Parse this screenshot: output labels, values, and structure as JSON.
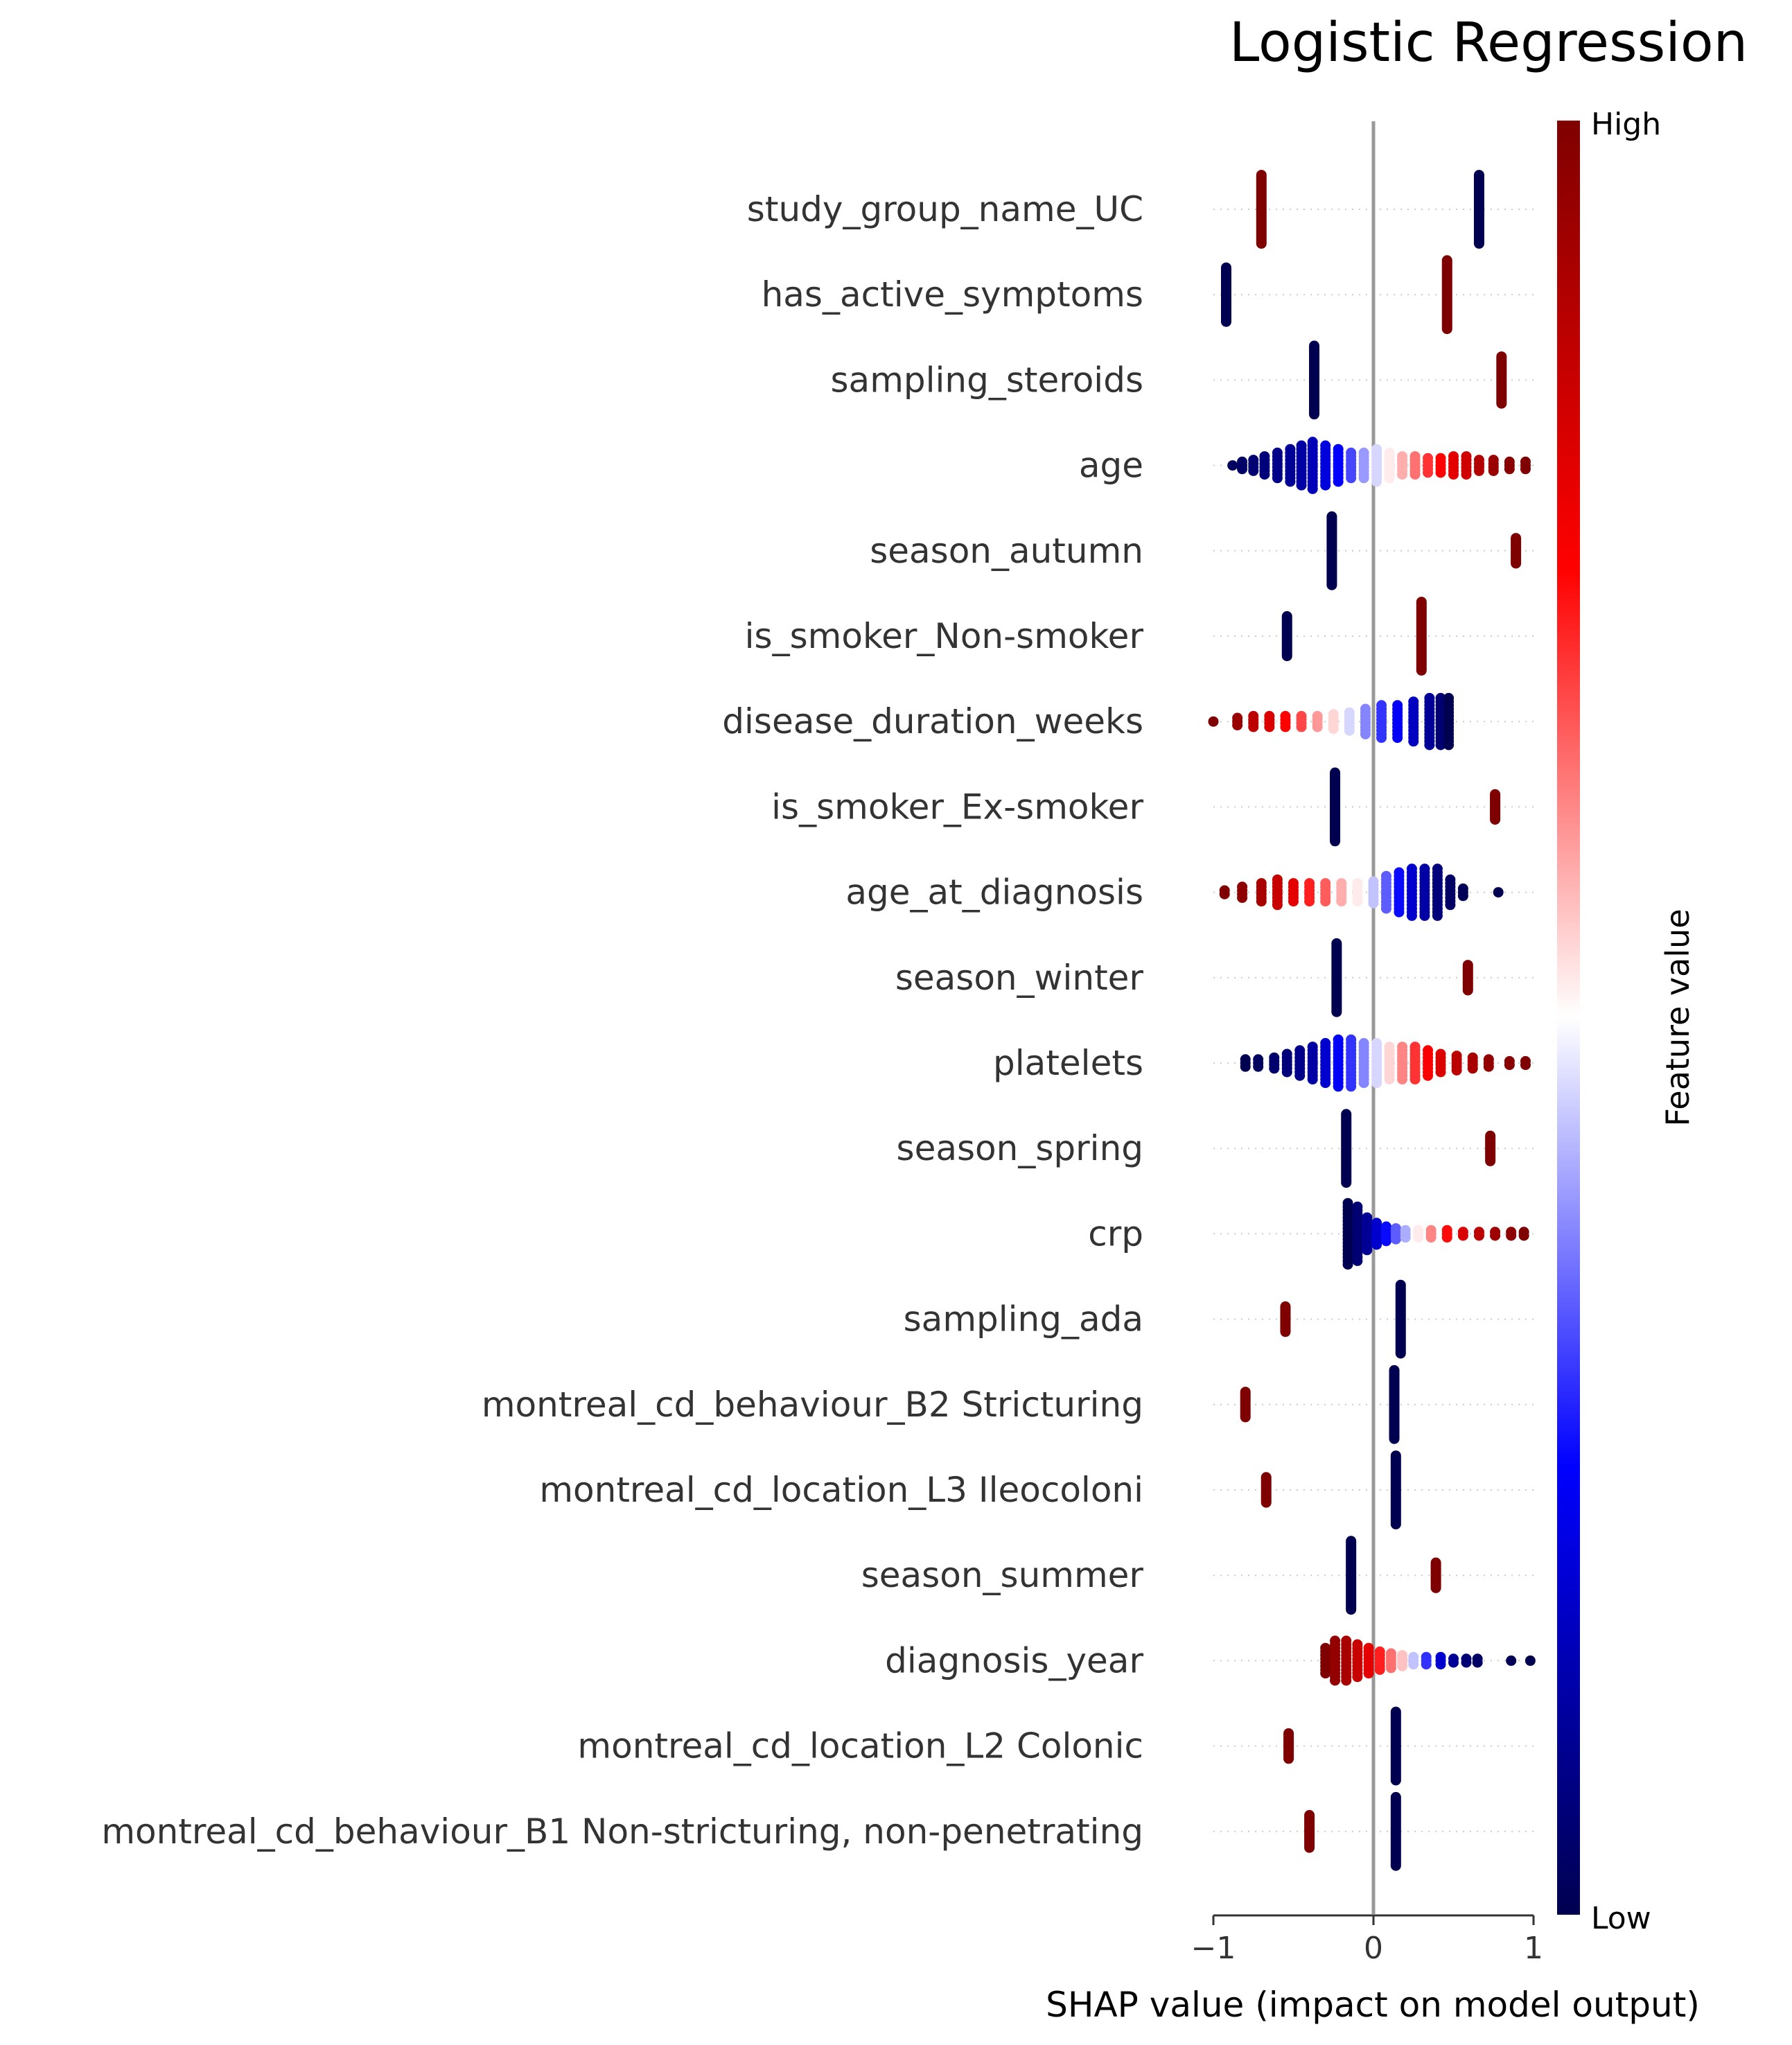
{
  "chart_data": {
    "type": "scatter",
    "subtype": "shap-beeswarm-summary",
    "title": "Logistic Regression",
    "xlabel": "SHAP value (impact on model output)",
    "xlim": [
      -1,
      1
    ],
    "xticks": [
      -1,
      0,
      1
    ],
    "xtick_labels": [
      "−1",
      "0",
      "1"
    ],
    "zero_line": true,
    "colorbar": {
      "title": "Feature value",
      "high_label": "High",
      "low_label": "Low",
      "colors": [
        "#000050",
        "#0000ff",
        "#ffffff",
        "#ff0000",
        "#7f0000"
      ]
    },
    "features": [
      {
        "name": "study_group_name_UC",
        "type": "binary",
        "groups": [
          {
            "shap": -0.7,
            "value": 1.0,
            "count": 20
          },
          {
            "shap": 0.66,
            "value": 0.0,
            "count": 20
          }
        ]
      },
      {
        "name": "has_active_symptoms",
        "type": "binary",
        "groups": [
          {
            "shap": -0.92,
            "value": 0.0,
            "count": 16
          },
          {
            "shap": 0.46,
            "value": 1.0,
            "count": 20
          }
        ]
      },
      {
        "name": "sampling_steroids",
        "type": "binary",
        "groups": [
          {
            "shap": -0.37,
            "value": 0.0,
            "count": 20
          },
          {
            "shap": 0.8,
            "value": 1.0,
            "count": 14
          }
        ]
      },
      {
        "name": "age",
        "type": "continuous",
        "clusters": [
          {
            "shap": -0.88,
            "value": 0.02,
            "n": 1
          },
          {
            "shap": -0.82,
            "value": 0.03,
            "n": 3
          },
          {
            "shap": -0.75,
            "value": 0.05,
            "n": 4
          },
          {
            "shap": -0.68,
            "value": 0.06,
            "n": 6
          },
          {
            "shap": -0.6,
            "value": 0.08,
            "n": 8
          },
          {
            "shap": -0.52,
            "value": 0.1,
            "n": 10
          },
          {
            "shap": -0.45,
            "value": 0.12,
            "n": 12
          },
          {
            "shap": -0.38,
            "value": 0.15,
            "n": 14
          },
          {
            "shap": -0.3,
            "value": 0.2,
            "n": 12
          },
          {
            "shap": -0.22,
            "value": 0.25,
            "n": 10
          },
          {
            "shap": -0.14,
            "value": 0.32,
            "n": 8
          },
          {
            "shap": -0.06,
            "value": 0.4,
            "n": 8
          },
          {
            "shap": 0.02,
            "value": 0.46,
            "n": 10
          },
          {
            "shap": 0.1,
            "value": 0.52,
            "n": 8
          },
          {
            "shap": 0.18,
            "value": 0.58,
            "n": 6
          },
          {
            "shap": 0.26,
            "value": 0.64,
            "n": 6
          },
          {
            "shap": 0.34,
            "value": 0.7,
            "n": 5
          },
          {
            "shap": 0.42,
            "value": 0.75,
            "n": 5
          },
          {
            "shap": 0.5,
            "value": 0.8,
            "n": 6
          },
          {
            "shap": 0.58,
            "value": 0.84,
            "n": 6
          },
          {
            "shap": 0.66,
            "value": 0.9,
            "n": 4
          },
          {
            "shap": 0.75,
            "value": 0.95,
            "n": 4
          },
          {
            "shap": 0.85,
            "value": 0.98,
            "n": 3
          },
          {
            "shap": 0.95,
            "value": 1.0,
            "n": 3
          }
        ]
      },
      {
        "name": "season_autumn",
        "type": "binary",
        "groups": [
          {
            "shap": -0.26,
            "value": 0.0,
            "count": 20
          },
          {
            "shap": 0.89,
            "value": 1.0,
            "count": 8
          }
        ]
      },
      {
        "name": "is_smoker_Non-smoker",
        "type": "binary",
        "groups": [
          {
            "shap": -0.54,
            "value": 0.0,
            "count": 12
          },
          {
            "shap": 0.3,
            "value": 1.0,
            "count": 20
          }
        ]
      },
      {
        "name": "disease_duration_weeks",
        "type": "continuous",
        "clusters": [
          {
            "shap": -1.0,
            "value": 1.0,
            "n": 1
          },
          {
            "shap": -0.85,
            "value": 0.95,
            "n": 3
          },
          {
            "shap": -0.75,
            "value": 0.88,
            "n": 4
          },
          {
            "shap": -0.65,
            "value": 0.82,
            "n": 4
          },
          {
            "shap": -0.55,
            "value": 0.75,
            "n": 4
          },
          {
            "shap": -0.45,
            "value": 0.68,
            "n": 4
          },
          {
            "shap": -0.35,
            "value": 0.6,
            "n": 4
          },
          {
            "shap": -0.25,
            "value": 0.54,
            "n": 5
          },
          {
            "shap": -0.15,
            "value": 0.46,
            "n": 6
          },
          {
            "shap": -0.05,
            "value": 0.38,
            "n": 8
          },
          {
            "shap": 0.05,
            "value": 0.3,
            "n": 10
          },
          {
            "shap": 0.15,
            "value": 0.24,
            "n": 10
          },
          {
            "shap": 0.25,
            "value": 0.16,
            "n": 12
          },
          {
            "shap": 0.35,
            "value": 0.1,
            "n": 14
          },
          {
            "shap": 0.42,
            "value": 0.05,
            "n": 14
          },
          {
            "shap": 0.47,
            "value": 0.0,
            "n": 14
          }
        ]
      },
      {
        "name": "is_smoker_Ex-smoker",
        "type": "binary",
        "groups": [
          {
            "shap": -0.24,
            "value": 0.0,
            "count": 20
          },
          {
            "shap": 0.76,
            "value": 1.0,
            "count": 8
          }
        ]
      },
      {
        "name": "age_at_diagnosis",
        "type": "continuous",
        "clusters": [
          {
            "shap": -0.93,
            "value": 1.0,
            "n": 2
          },
          {
            "shap": -0.82,
            "value": 0.97,
            "n": 4
          },
          {
            "shap": -0.7,
            "value": 0.92,
            "n": 6
          },
          {
            "shap": -0.6,
            "value": 0.86,
            "n": 8
          },
          {
            "shap": -0.5,
            "value": 0.8,
            "n": 6
          },
          {
            "shap": -0.4,
            "value": 0.72,
            "n": 6
          },
          {
            "shap": -0.3,
            "value": 0.66,
            "n": 6
          },
          {
            "shap": -0.2,
            "value": 0.58,
            "n": 6
          },
          {
            "shap": -0.1,
            "value": 0.52,
            "n": 6
          },
          {
            "shap": 0.0,
            "value": 0.44,
            "n": 7
          },
          {
            "shap": 0.08,
            "value": 0.34,
            "n": 10
          },
          {
            "shap": 0.16,
            "value": 0.26,
            "n": 12
          },
          {
            "shap": 0.24,
            "value": 0.18,
            "n": 14
          },
          {
            "shap": 0.32,
            "value": 0.12,
            "n": 14
          },
          {
            "shap": 0.4,
            "value": 0.06,
            "n": 14
          },
          {
            "shap": 0.48,
            "value": 0.03,
            "n": 8
          },
          {
            "shap": 0.56,
            "value": 0.01,
            "n": 3
          },
          {
            "shap": 0.78,
            "value": 0.0,
            "n": 1
          }
        ]
      },
      {
        "name": "season_winter",
        "type": "binary",
        "groups": [
          {
            "shap": -0.23,
            "value": 0.0,
            "count": 20
          },
          {
            "shap": 0.59,
            "value": 1.0,
            "count": 8
          }
        ]
      },
      {
        "name": "platelets",
        "type": "continuous",
        "clusters": [
          {
            "shap": -0.8,
            "value": 0.0,
            "n": 3
          },
          {
            "shap": -0.72,
            "value": 0.02,
            "n": 3
          },
          {
            "shap": -0.62,
            "value": 0.04,
            "n": 4
          },
          {
            "shap": -0.54,
            "value": 0.06,
            "n": 6
          },
          {
            "shap": -0.46,
            "value": 0.08,
            "n": 8
          },
          {
            "shap": -0.38,
            "value": 0.12,
            "n": 10
          },
          {
            "shap": -0.3,
            "value": 0.18,
            "n": 12
          },
          {
            "shap": -0.22,
            "value": 0.24,
            "n": 14
          },
          {
            "shap": -0.14,
            "value": 0.3,
            "n": 14
          },
          {
            "shap": -0.06,
            "value": 0.38,
            "n": 12
          },
          {
            "shap": 0.02,
            "value": 0.46,
            "n": 12
          },
          {
            "shap": 0.1,
            "value": 0.54,
            "n": 10
          },
          {
            "shap": 0.18,
            "value": 0.62,
            "n": 10
          },
          {
            "shap": 0.26,
            "value": 0.7,
            "n": 10
          },
          {
            "shap": 0.34,
            "value": 0.76,
            "n": 8
          },
          {
            "shap": 0.42,
            "value": 0.82,
            "n": 6
          },
          {
            "shap": 0.52,
            "value": 0.88,
            "n": 5
          },
          {
            "shap": 0.62,
            "value": 0.92,
            "n": 4
          },
          {
            "shap": 0.72,
            "value": 0.96,
            "n": 3
          },
          {
            "shap": 0.85,
            "value": 0.98,
            "n": 2
          },
          {
            "shap": 0.95,
            "value": 1.0,
            "n": 2
          }
        ]
      },
      {
        "name": "season_spring",
        "type": "binary",
        "groups": [
          {
            "shap": -0.17,
            "value": 0.0,
            "count": 20
          },
          {
            "shap": 0.73,
            "value": 1.0,
            "count": 8
          }
        ]
      },
      {
        "name": "crp",
        "type": "continuous",
        "clusters": [
          {
            "shap": -0.16,
            "value": 0.0,
            "n": 18
          },
          {
            "shap": -0.1,
            "value": 0.05,
            "n": 16
          },
          {
            "shap": -0.04,
            "value": 0.1,
            "n": 10
          },
          {
            "shap": 0.02,
            "value": 0.18,
            "n": 7
          },
          {
            "shap": 0.08,
            "value": 0.26,
            "n": 5
          },
          {
            "shap": 0.14,
            "value": 0.34,
            "n": 4
          },
          {
            "shap": 0.2,
            "value": 0.42,
            "n": 3
          },
          {
            "shap": 0.28,
            "value": 0.52,
            "n": 3
          },
          {
            "shap": 0.36,
            "value": 0.62,
            "n": 3
          },
          {
            "shap": 0.46,
            "value": 0.74,
            "n": 3
          },
          {
            "shap": 0.56,
            "value": 0.82,
            "n": 2
          },
          {
            "shap": 0.66,
            "value": 0.88,
            "n": 2
          },
          {
            "shap": 0.76,
            "value": 0.94,
            "n": 2
          },
          {
            "shap": 0.86,
            "value": 0.97,
            "n": 2
          },
          {
            "shap": 0.94,
            "value": 1.0,
            "n": 2
          }
        ]
      },
      {
        "name": "sampling_ada",
        "type": "binary",
        "groups": [
          {
            "shap": -0.55,
            "value": 1.0,
            "count": 8
          },
          {
            "shap": 0.17,
            "value": 0.0,
            "count": 20
          }
        ]
      },
      {
        "name": "montreal_cd_behaviour_B2 Stricturing",
        "type": "binary",
        "groups": [
          {
            "shap": -0.8,
            "value": 1.0,
            "count": 8
          },
          {
            "shap": 0.13,
            "value": 0.0,
            "count": 20
          }
        ]
      },
      {
        "name": "montreal_cd_location_L3 Ileocoloni",
        "type": "binary",
        "groups": [
          {
            "shap": -0.67,
            "value": 1.0,
            "count": 8
          },
          {
            "shap": 0.14,
            "value": 0.0,
            "count": 20
          }
        ]
      },
      {
        "name": "season_summer",
        "type": "binary",
        "groups": [
          {
            "shap": -0.14,
            "value": 0.0,
            "count": 20
          },
          {
            "shap": 0.39,
            "value": 1.0,
            "count": 8
          }
        ]
      },
      {
        "name": "diagnosis_year",
        "type": "continuous",
        "clusters": [
          {
            "shap": -0.3,
            "value": 1.0,
            "n": 8
          },
          {
            "shap": -0.24,
            "value": 0.96,
            "n": 12
          },
          {
            "shap": -0.17,
            "value": 0.92,
            "n": 12
          },
          {
            "shap": -0.1,
            "value": 0.86,
            "n": 10
          },
          {
            "shap": -0.03,
            "value": 0.8,
            "n": 8
          },
          {
            "shap": 0.04,
            "value": 0.72,
            "n": 6
          },
          {
            "shap": 0.11,
            "value": 0.64,
            "n": 5
          },
          {
            "shap": 0.18,
            "value": 0.56,
            "n": 4
          },
          {
            "shap": 0.25,
            "value": 0.44,
            "n": 3
          },
          {
            "shap": 0.33,
            "value": 0.3,
            "n": 3
          },
          {
            "shap": 0.42,
            "value": 0.18,
            "n": 3
          },
          {
            "shap": 0.5,
            "value": 0.1,
            "n": 2
          },
          {
            "shap": 0.58,
            "value": 0.05,
            "n": 2
          },
          {
            "shap": 0.65,
            "value": 0.03,
            "n": 2
          },
          {
            "shap": 0.86,
            "value": 0.01,
            "n": 1
          },
          {
            "shap": 0.98,
            "value": 0.0,
            "n": 1
          }
        ]
      },
      {
        "name": "montreal_cd_location_L2 Colonic",
        "type": "binary",
        "groups": [
          {
            "shap": -0.53,
            "value": 1.0,
            "count": 8
          },
          {
            "shap": 0.14,
            "value": 0.0,
            "count": 20
          }
        ]
      },
      {
        "name": "montreal_cd_behaviour_B1 Non-stricturing, non-penetrating",
        "type": "binary",
        "groups": [
          {
            "shap": -0.4,
            "value": 1.0,
            "count": 10
          },
          {
            "shap": 0.14,
            "value": 0.0,
            "count": 20
          }
        ]
      }
    ]
  }
}
